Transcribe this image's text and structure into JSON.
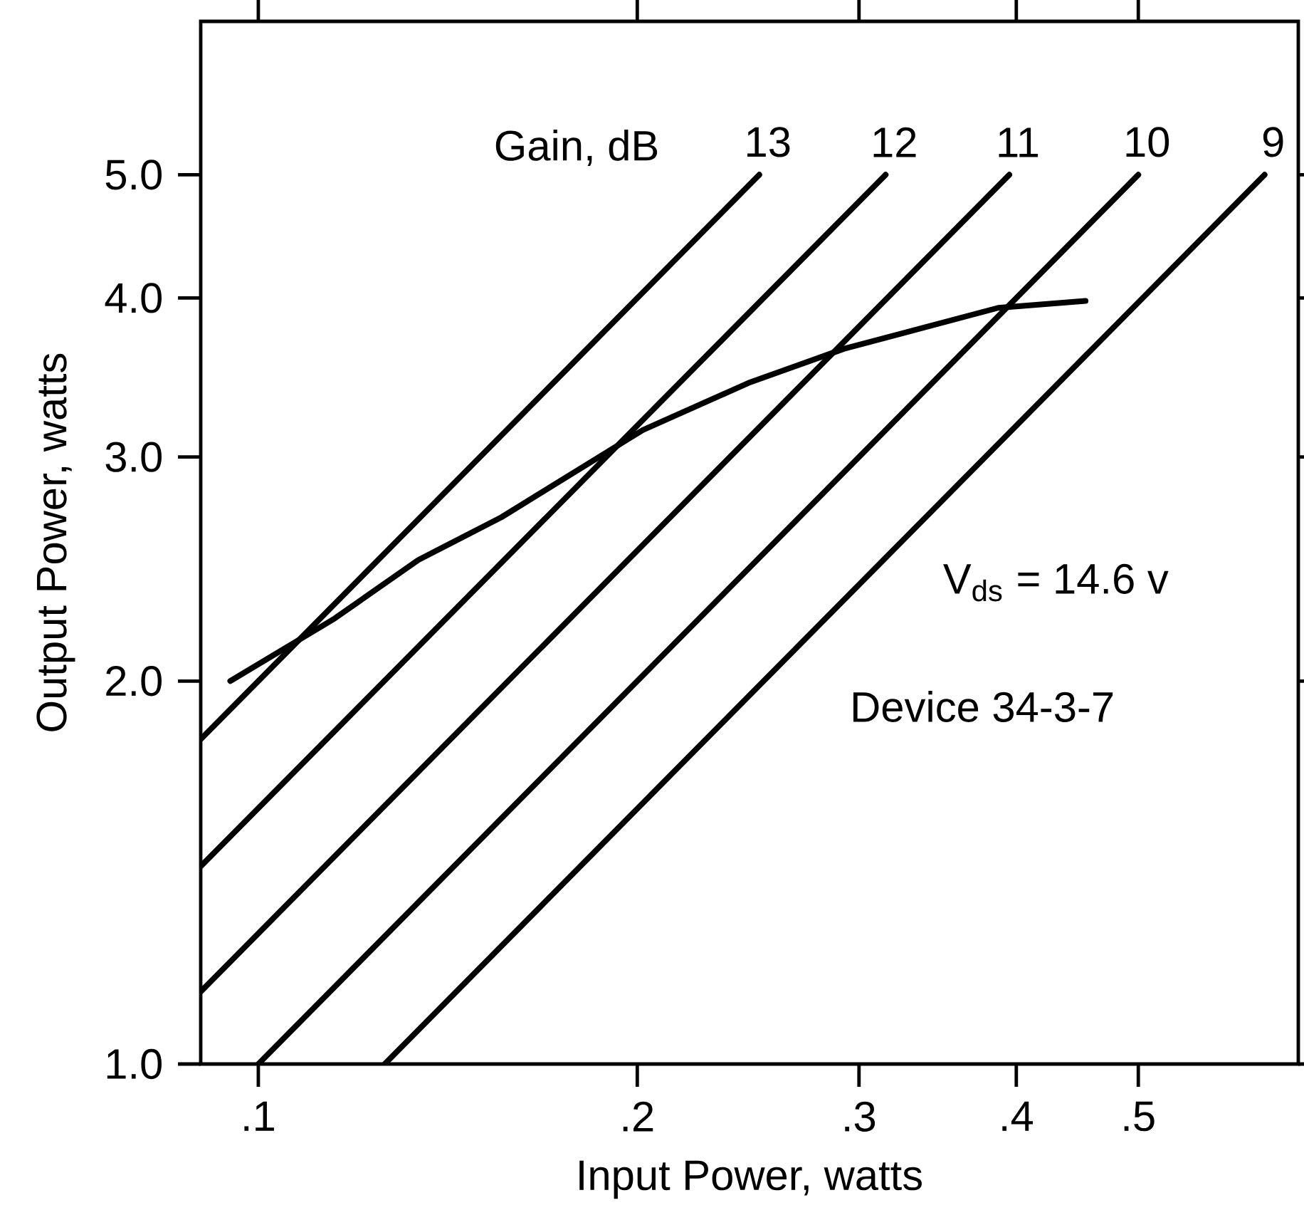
{
  "chart_data": {
    "type": "line",
    "xlabel": "Input Power, watts",
    "ylabel": "Output Power, watts",
    "log": "xy",
    "xlim": [
      0.09,
      0.67
    ],
    "ylim": [
      1,
      6.6
    ],
    "xticks": [
      {
        "value": 0.1,
        "label": ".1"
      },
      {
        "value": 0.2,
        "label": ".2"
      },
      {
        "value": 0.3,
        "label": ".3"
      },
      {
        "value": 0.4,
        "label": ".4"
      },
      {
        "value": 0.5,
        "label": ".5"
      }
    ],
    "yticks": [
      {
        "value": 1,
        "label": "1.0"
      },
      {
        "value": 2,
        "label": "2.0"
      },
      {
        "value": 3,
        "label": "3.0"
      },
      {
        "value": 4,
        "label": "4.0"
      },
      {
        "value": 5,
        "label": "5.0"
      }
    ],
    "grid": false,
    "legend": false,
    "marker": "none",
    "line_style": "solid",
    "series": [
      {
        "color": "#000000",
        "x": [
          0.095,
          0.115,
          0.134,
          0.156,
          0.202,
          0.245,
          0.292,
          0.387,
          0.454
        ],
        "values": [
          2.0,
          2.24,
          2.49,
          2.69,
          3.15,
          3.43,
          3.65,
          3.93,
          3.98
        ]
      },
      {
        "name": "13",
        "color": "#000000",
        "x": [
          0.09,
          0.25
        ],
        "values": [
          1.8,
          5.0
        ]
      },
      {
        "name": "12",
        "color": "#000000",
        "x": [
          0.09,
          0.315
        ],
        "values": [
          1.43,
          5.0
        ]
      },
      {
        "name": "11",
        "color": "#000000",
        "x": [
          0.09,
          0.395
        ],
        "values": [
          1.14,
          5.0
        ]
      },
      {
        "name": "10",
        "color": "#000000",
        "x": [
          0.1,
          0.5
        ],
        "values": [
          1.0,
          5.0
        ]
      },
      {
        "name": "9",
        "color": "#000000",
        "x": [
          0.126,
          0.63
        ],
        "values": [
          1.0,
          5.0
        ]
      }
    ],
    "annotations": [
      "Gain, dB",
      "V$_{ds}$ = 14.6 v",
      "Device 34-3-7"
    ]
  }
}
